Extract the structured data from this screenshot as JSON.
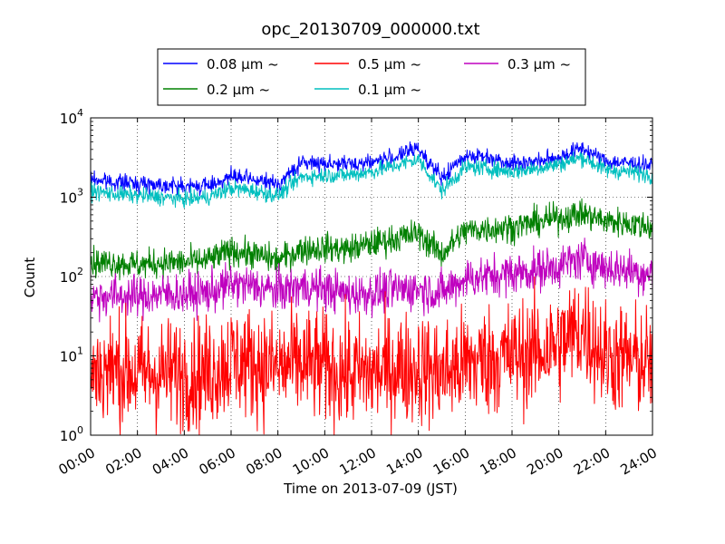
{
  "chart_data": {
    "type": "line",
    "title": "opc_20130709_000000.txt",
    "xlabel": "Time on 2013-07-09 (JST)",
    "ylabel": "Count",
    "xlim": [
      "00:00",
      "24:00"
    ],
    "ylim": [
      1,
      10000
    ],
    "yscale": "log",
    "grid": true,
    "legend_position": "top-center",
    "x_ticks": [
      "00:00",
      "02:00",
      "04:00",
      "06:00",
      "08:00",
      "10:00",
      "12:00",
      "14:00",
      "16:00",
      "18:00",
      "20:00",
      "22:00",
      "24:00"
    ],
    "y_ticks": [
      {
        "base": "10",
        "exp": "0"
      },
      {
        "base": "10",
        "exp": "1"
      },
      {
        "base": "10",
        "exp": "2"
      },
      {
        "base": "10",
        "exp": "3"
      },
      {
        "base": "10",
        "exp": "4"
      }
    ],
    "hours": [
      0,
      1,
      2,
      3,
      4,
      5,
      6,
      7,
      8,
      9,
      10,
      11,
      12,
      13,
      14,
      15,
      16,
      17,
      18,
      19,
      20,
      21,
      22,
      23,
      24
    ],
    "series": [
      {
        "name": "0.08 μm ~",
        "color": "#0000ff",
        "legend_order": 0,
        "noise": 0.05,
        "values": [
          1700,
          1550,
          1500,
          1450,
          1350,
          1400,
          1800,
          1650,
          1450,
          2700,
          2700,
          2600,
          2800,
          3200,
          4200,
          1700,
          3400,
          3200,
          2700,
          2800,
          3200,
          4200,
          2800,
          2700,
          2500
        ]
      },
      {
        "name": "0.1 μm ~",
        "color": "#00bfbf",
        "legend_order": 3,
        "noise": 0.05,
        "values": [
          1200,
          1100,
          1050,
          1000,
          950,
          1000,
          1300,
          1200,
          1050,
          1800,
          1900,
          1900,
          2100,
          2500,
          3000,
          1200,
          2400,
          2300,
          2100,
          2300,
          2600,
          3200,
          2200,
          2100,
          1900
        ]
      },
      {
        "name": "0.2 μm ~",
        "color": "#008000",
        "legend_order": 1,
        "noise": 0.09,
        "values": [
          150,
          150,
          140,
          150,
          150,
          160,
          210,
          190,
          160,
          220,
          230,
          220,
          260,
          300,
          350,
          190,
          380,
          400,
          420,
          480,
          550,
          620,
          500,
          470,
          420
        ]
      },
      {
        "name": "0.3 μm ~",
        "color": "#bf00bf",
        "legend_order": 4,
        "noise": 0.13,
        "values": [
          55,
          58,
          55,
          60,
          60,
          62,
          80,
          75,
          65,
          75,
          70,
          60,
          62,
          68,
          70,
          62,
          95,
          100,
          110,
          120,
          135,
          170,
          130,
          120,
          105
        ]
      },
      {
        "name": "0.5 μm ~",
        "color": "#ff0000",
        "legend_order": 2,
        "noise": 0.35,
        "values": [
          6,
          7,
          6,
          6,
          6,
          6,
          9,
          8,
          7,
          8,
          7,
          6,
          6,
          7,
          7,
          6,
          8,
          9,
          10,
          11,
          14,
          22,
          10,
          9,
          8
        ]
      }
    ]
  }
}
